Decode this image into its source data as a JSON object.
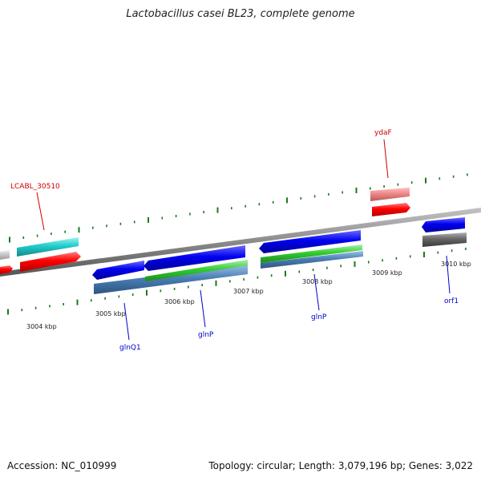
{
  "title": "Lactobacillus casei BL23, complete genome",
  "footer": {
    "accession": "Accession: NC_010999",
    "summary": "Topology: circular; Length: 3,079,196 bp; Genes: 3,022"
  },
  "ruler_labels": [
    "3004 kbp",
    "3005 kbp",
    "3006 kbp",
    "3007 kbp",
    "3008 kbp",
    "3009 kbp",
    "3010 kbp"
  ],
  "gene_labels": [
    {
      "text": "LCABL_30510",
      "color": "#cc0000"
    },
    {
      "text": "ydaF",
      "color": "#cc0000"
    },
    {
      "text": "glnQ1",
      "color": "#0000cc"
    },
    {
      "text": "glnP",
      "color": "#0000cc"
    },
    {
      "text": "glnP",
      "color": "#0000cc"
    },
    {
      "text": "orf1",
      "color": "#0000cc"
    }
  ],
  "colors": {
    "backbone": "#8a8a8a",
    "tick": "#1a7a1a",
    "cds_forward": "#ee0000",
    "cds_reverse": "#0000dd",
    "cog_cyan": "#22cccc",
    "cog_green": "#33cc33",
    "cog_steel": "#4a7fb5",
    "cog_pink": "#ee8888",
    "cog_gray": "#666666"
  }
}
